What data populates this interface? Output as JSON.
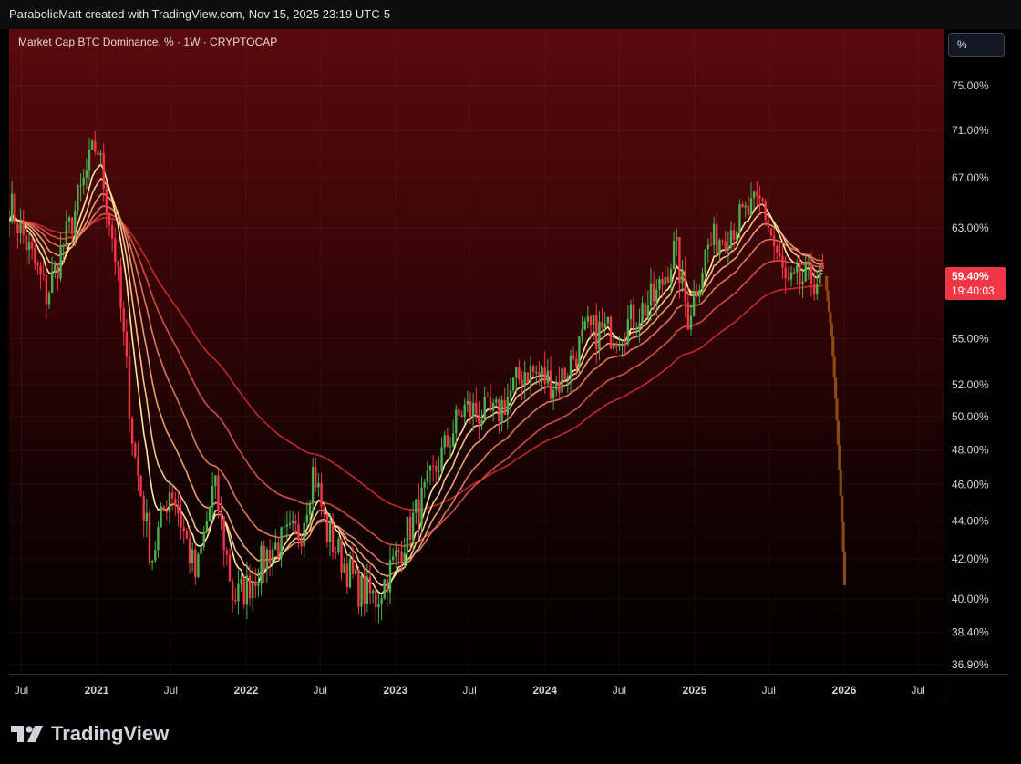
{
  "header": {
    "attribution": "ParabolicMatt created with TradingView.com, Nov 15, 2025 23:19 UTC-5"
  },
  "legend": {
    "symbol_line": "Market Cap BTC Dominance, % · 1W · CRYPTOCAP"
  },
  "scale_button": {
    "label": "%"
  },
  "price_tag": {
    "value": "59.40%",
    "countdown": "19:40:03"
  },
  "branding": {
    "logo_text": "TradingView"
  },
  "colors": {
    "up": "#4caf50",
    "down": "#f23645",
    "projection": "#8a4a14",
    "ribbon_fast": "#ffe9a0",
    "ribbon_slow": "#c62828",
    "price_tag": "#f23645"
  },
  "chart_data": {
    "type": "candlestick",
    "title": "Market Cap BTC Dominance, % · 1W · CRYPTOCAP",
    "scale": "log",
    "y_ticks": [
      "75.00%",
      "71.00%",
      "67.00%",
      "63.00%",
      "55.00%",
      "52.00%",
      "50.00%",
      "48.00%",
      "46.00%",
      "44.00%",
      "42.00%",
      "40.00%",
      "38.40%",
      "36.90%"
    ],
    "y_tick_values": [
      75,
      71,
      67,
      63,
      55,
      52,
      50,
      48,
      46,
      44,
      42,
      40,
      38.4,
      36.9
    ],
    "x_ticks": [
      {
        "label": "Jul",
        "date": "2020-07-01",
        "bold": false
      },
      {
        "label": "2021",
        "date": "2021-01-01",
        "bold": true
      },
      {
        "label": "Jul",
        "date": "2021-07-01",
        "bold": false
      },
      {
        "label": "2022",
        "date": "2022-01-01",
        "bold": true
      },
      {
        "label": "Jul",
        "date": "2022-07-01",
        "bold": false
      },
      {
        "label": "2023",
        "date": "2023-01-01",
        "bold": true
      },
      {
        "label": "Jul",
        "date": "2023-07-01",
        "bold": false
      },
      {
        "label": "2024",
        "date": "2024-01-01",
        "bold": true
      },
      {
        "label": "Jul",
        "date": "2024-07-01",
        "bold": false
      },
      {
        "label": "2025",
        "date": "2025-01-01",
        "bold": true
      },
      {
        "label": "Jul",
        "date": "2025-07-01",
        "bold": false
      },
      {
        "label": "2026",
        "date": "2026-01-01",
        "bold": true
      },
      {
        "label": "Jul",
        "date": "2026-07-01",
        "bold": false
      }
    ],
    "price_path": [
      [
        "2020-06-01",
        65.0
      ],
      [
        "2020-09-01",
        58.0
      ],
      [
        "2020-11-01",
        63.5
      ],
      [
        "2021-01-01",
        70.0
      ],
      [
        "2021-02-15",
        61.0
      ],
      [
        "2021-04-01",
        48.0
      ],
      [
        "2021-05-15",
        42.0
      ],
      [
        "2021-07-01",
        46.0
      ],
      [
        "2021-09-01",
        41.0
      ],
      [
        "2021-10-15",
        46.0
      ],
      [
        "2021-12-01",
        40.0
      ],
      [
        "2022-01-01",
        40.5
      ],
      [
        "2022-03-01",
        42.5
      ],
      [
        "2022-05-15",
        43.5
      ],
      [
        "2022-06-15",
        47.0
      ],
      [
        "2022-07-15",
        43.5
      ],
      [
        "2022-10-01",
        40.5
      ],
      [
        "2022-11-15",
        40.0
      ],
      [
        "2023-01-01",
        42.0
      ],
      [
        "2023-03-15",
        45.5
      ],
      [
        "2023-06-15",
        50.5
      ],
      [
        "2023-09-01",
        50.0
      ],
      [
        "2023-11-15",
        53.0
      ],
      [
        "2024-02-01",
        52.0
      ],
      [
        "2024-04-15",
        55.5
      ],
      [
        "2024-07-01",
        55.5
      ],
      [
        "2024-10-01",
        58.0
      ],
      [
        "2024-11-15",
        61.5
      ],
      [
        "2024-12-15",
        56.5
      ],
      [
        "2025-02-01",
        61.5
      ],
      [
        "2025-04-15",
        63.5
      ],
      [
        "2025-06-15",
        65.0
      ],
      [
        "2025-07-15",
        61.5
      ],
      [
        "2025-08-15",
        58.5
      ],
      [
        "2025-09-15",
        59.0
      ],
      [
        "2025-11-15",
        59.4
      ]
    ],
    "projection_path": [
      [
        "2025-11-15",
        59.4
      ],
      [
        "2025-12-01",
        55.5
      ],
      [
        "2025-12-15",
        49.5
      ],
      [
        "2025-12-29",
        43.0
      ],
      [
        "2026-01-05",
        39.2
      ]
    ],
    "ribbon_periods": [
      8,
      13,
      21,
      34,
      55,
      89
    ]
  }
}
